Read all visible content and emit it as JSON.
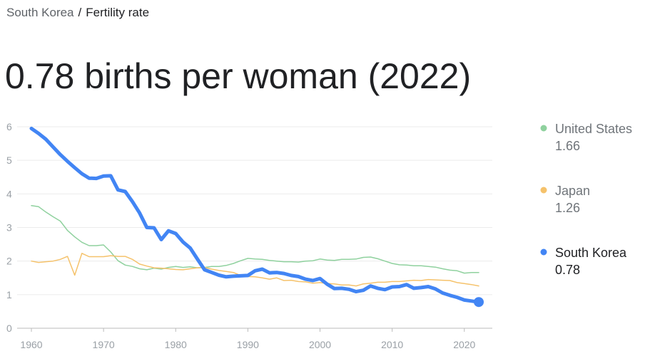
{
  "breadcrumb": {
    "parent": "South Korea",
    "separator": "/",
    "current": "Fertility rate"
  },
  "headline": "0.78 births per woman (2022)",
  "chart_data": {
    "type": "line",
    "x": [
      1960,
      1961,
      1962,
      1963,
      1964,
      1965,
      1966,
      1967,
      1968,
      1969,
      1970,
      1971,
      1972,
      1973,
      1974,
      1975,
      1976,
      1977,
      1978,
      1979,
      1980,
      1981,
      1982,
      1983,
      1984,
      1985,
      1986,
      1987,
      1988,
      1989,
      1990,
      1991,
      1992,
      1993,
      1994,
      1995,
      1996,
      1997,
      1998,
      1999,
      2000,
      2001,
      2002,
      2003,
      2004,
      2005,
      2006,
      2007,
      2008,
      2009,
      2010,
      2011,
      2012,
      2013,
      2014,
      2015,
      2016,
      2017,
      2018,
      2019,
      2020,
      2021,
      2022
    ],
    "xlim": [
      1960,
      2022
    ],
    "xticks": [
      1960,
      1970,
      1980,
      1990,
      2000,
      2010,
      2020
    ],
    "ylim": [
      0,
      6
    ],
    "yticks": [
      0,
      1,
      2,
      3,
      4,
      5,
      6
    ],
    "grid": true,
    "series": [
      {
        "name": "United States",
        "color": "#8fd19e",
        "values": [
          3.65,
          3.62,
          3.46,
          3.32,
          3.19,
          2.91,
          2.72,
          2.56,
          2.46,
          2.46,
          2.48,
          2.27,
          2.01,
          1.88,
          1.84,
          1.77,
          1.74,
          1.79,
          1.76,
          1.81,
          1.84,
          1.81,
          1.83,
          1.8,
          1.81,
          1.84,
          1.84,
          1.87,
          1.93,
          2.01,
          2.08,
          2.06,
          2.05,
          2.02,
          2.0,
          1.98,
          1.98,
          1.97,
          2.0,
          2.01,
          2.06,
          2.03,
          2.02,
          2.05,
          2.05,
          2.06,
          2.11,
          2.12,
          2.07,
          2.0,
          1.93,
          1.89,
          1.88,
          1.86,
          1.86,
          1.84,
          1.82,
          1.77,
          1.73,
          1.71,
          1.64,
          1.66,
          1.66
        ]
      },
      {
        "name": "Japan",
        "color": "#f5c26b",
        "values": [
          2.0,
          1.96,
          1.98,
          2.0,
          2.05,
          2.14,
          1.58,
          2.23,
          2.13,
          2.13,
          2.13,
          2.16,
          2.14,
          2.14,
          2.05,
          1.91,
          1.85,
          1.8,
          1.79,
          1.77,
          1.75,
          1.74,
          1.77,
          1.8,
          1.81,
          1.76,
          1.72,
          1.69,
          1.66,
          1.57,
          1.54,
          1.53,
          1.5,
          1.46,
          1.5,
          1.42,
          1.43,
          1.39,
          1.38,
          1.34,
          1.36,
          1.33,
          1.32,
          1.29,
          1.29,
          1.26,
          1.32,
          1.34,
          1.37,
          1.37,
          1.39,
          1.39,
          1.41,
          1.43,
          1.42,
          1.45,
          1.44,
          1.43,
          1.42,
          1.36,
          1.33,
          1.3,
          1.26
        ]
      },
      {
        "name": "South Korea",
        "color": "#4285f4",
        "values": [
          5.95,
          5.8,
          5.63,
          5.4,
          5.17,
          4.97,
          4.78,
          4.6,
          4.47,
          4.46,
          4.53,
          4.54,
          4.12,
          4.07,
          3.77,
          3.43,
          3.0,
          2.99,
          2.64,
          2.9,
          2.82,
          2.57,
          2.39,
          2.06,
          1.74,
          1.66,
          1.58,
          1.53,
          1.55,
          1.56,
          1.57,
          1.71,
          1.76,
          1.65,
          1.66,
          1.63,
          1.57,
          1.54,
          1.46,
          1.42,
          1.48,
          1.31,
          1.18,
          1.19,
          1.16,
          1.09,
          1.13,
          1.26,
          1.19,
          1.15,
          1.23,
          1.24,
          1.3,
          1.19,
          1.21,
          1.24,
          1.17,
          1.05,
          0.98,
          0.92,
          0.84,
          0.81,
          0.78
        ]
      }
    ]
  }
}
